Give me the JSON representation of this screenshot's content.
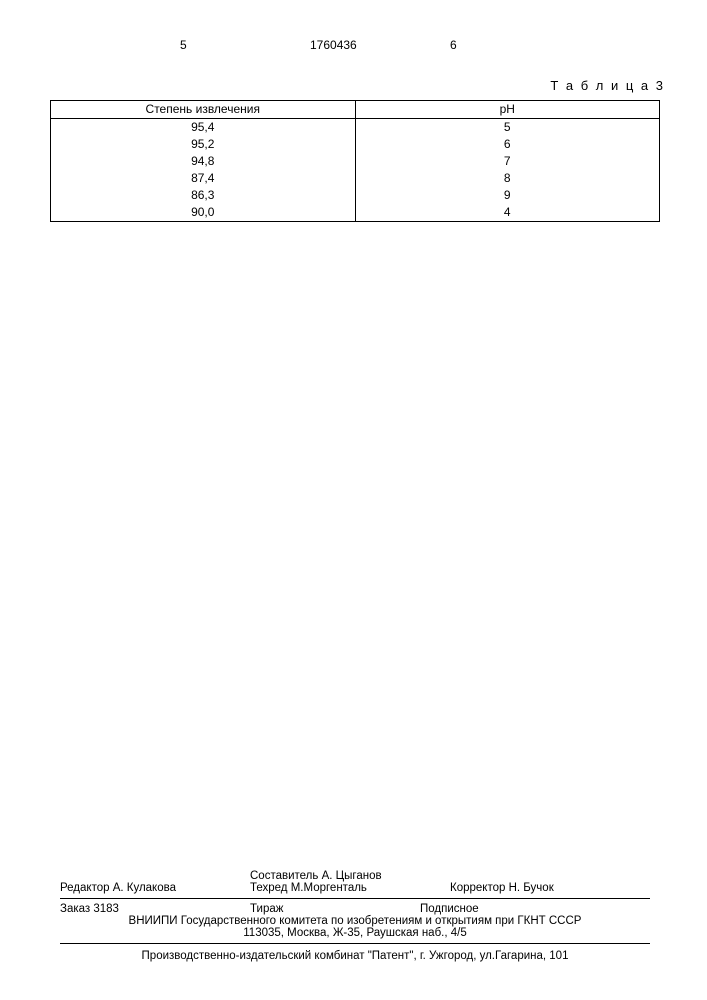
{
  "header": {
    "left_num": "5",
    "doc_num": "1760436",
    "right_num": "6"
  },
  "table_label": "Т а б л и ц а 3",
  "table": {
    "columns": [
      "Степень извлечения",
      "pH"
    ],
    "rows": [
      [
        "95,4",
        "5"
      ],
      [
        "95,2",
        "6"
      ],
      [
        "94,8",
        "7"
      ],
      [
        "87,4",
        "8"
      ],
      [
        "86,3",
        "9"
      ],
      [
        "90,0",
        "4"
      ]
    ]
  },
  "credits": {
    "composer": "Составитель  А. Цыганов",
    "editor": "Редактор А. Кулакова",
    "techred": "Техред М.Моргенталь",
    "corrector": "Корректор Н. Бучок"
  },
  "order": {
    "order": "Заказ 3183",
    "tirazh": "Тираж",
    "podpis": "Подписное"
  },
  "institute_line1": "ВНИИПИ Государственного комитета по изобретениям и открытиям при ГКНТ СССР",
  "institute_line2": "113035, Москва, Ж-35, Раушская наб., 4/5",
  "printer": "Производственно-издательский комбинат \"Патент\", г. Ужгород, ул.Гагарина, 101"
}
